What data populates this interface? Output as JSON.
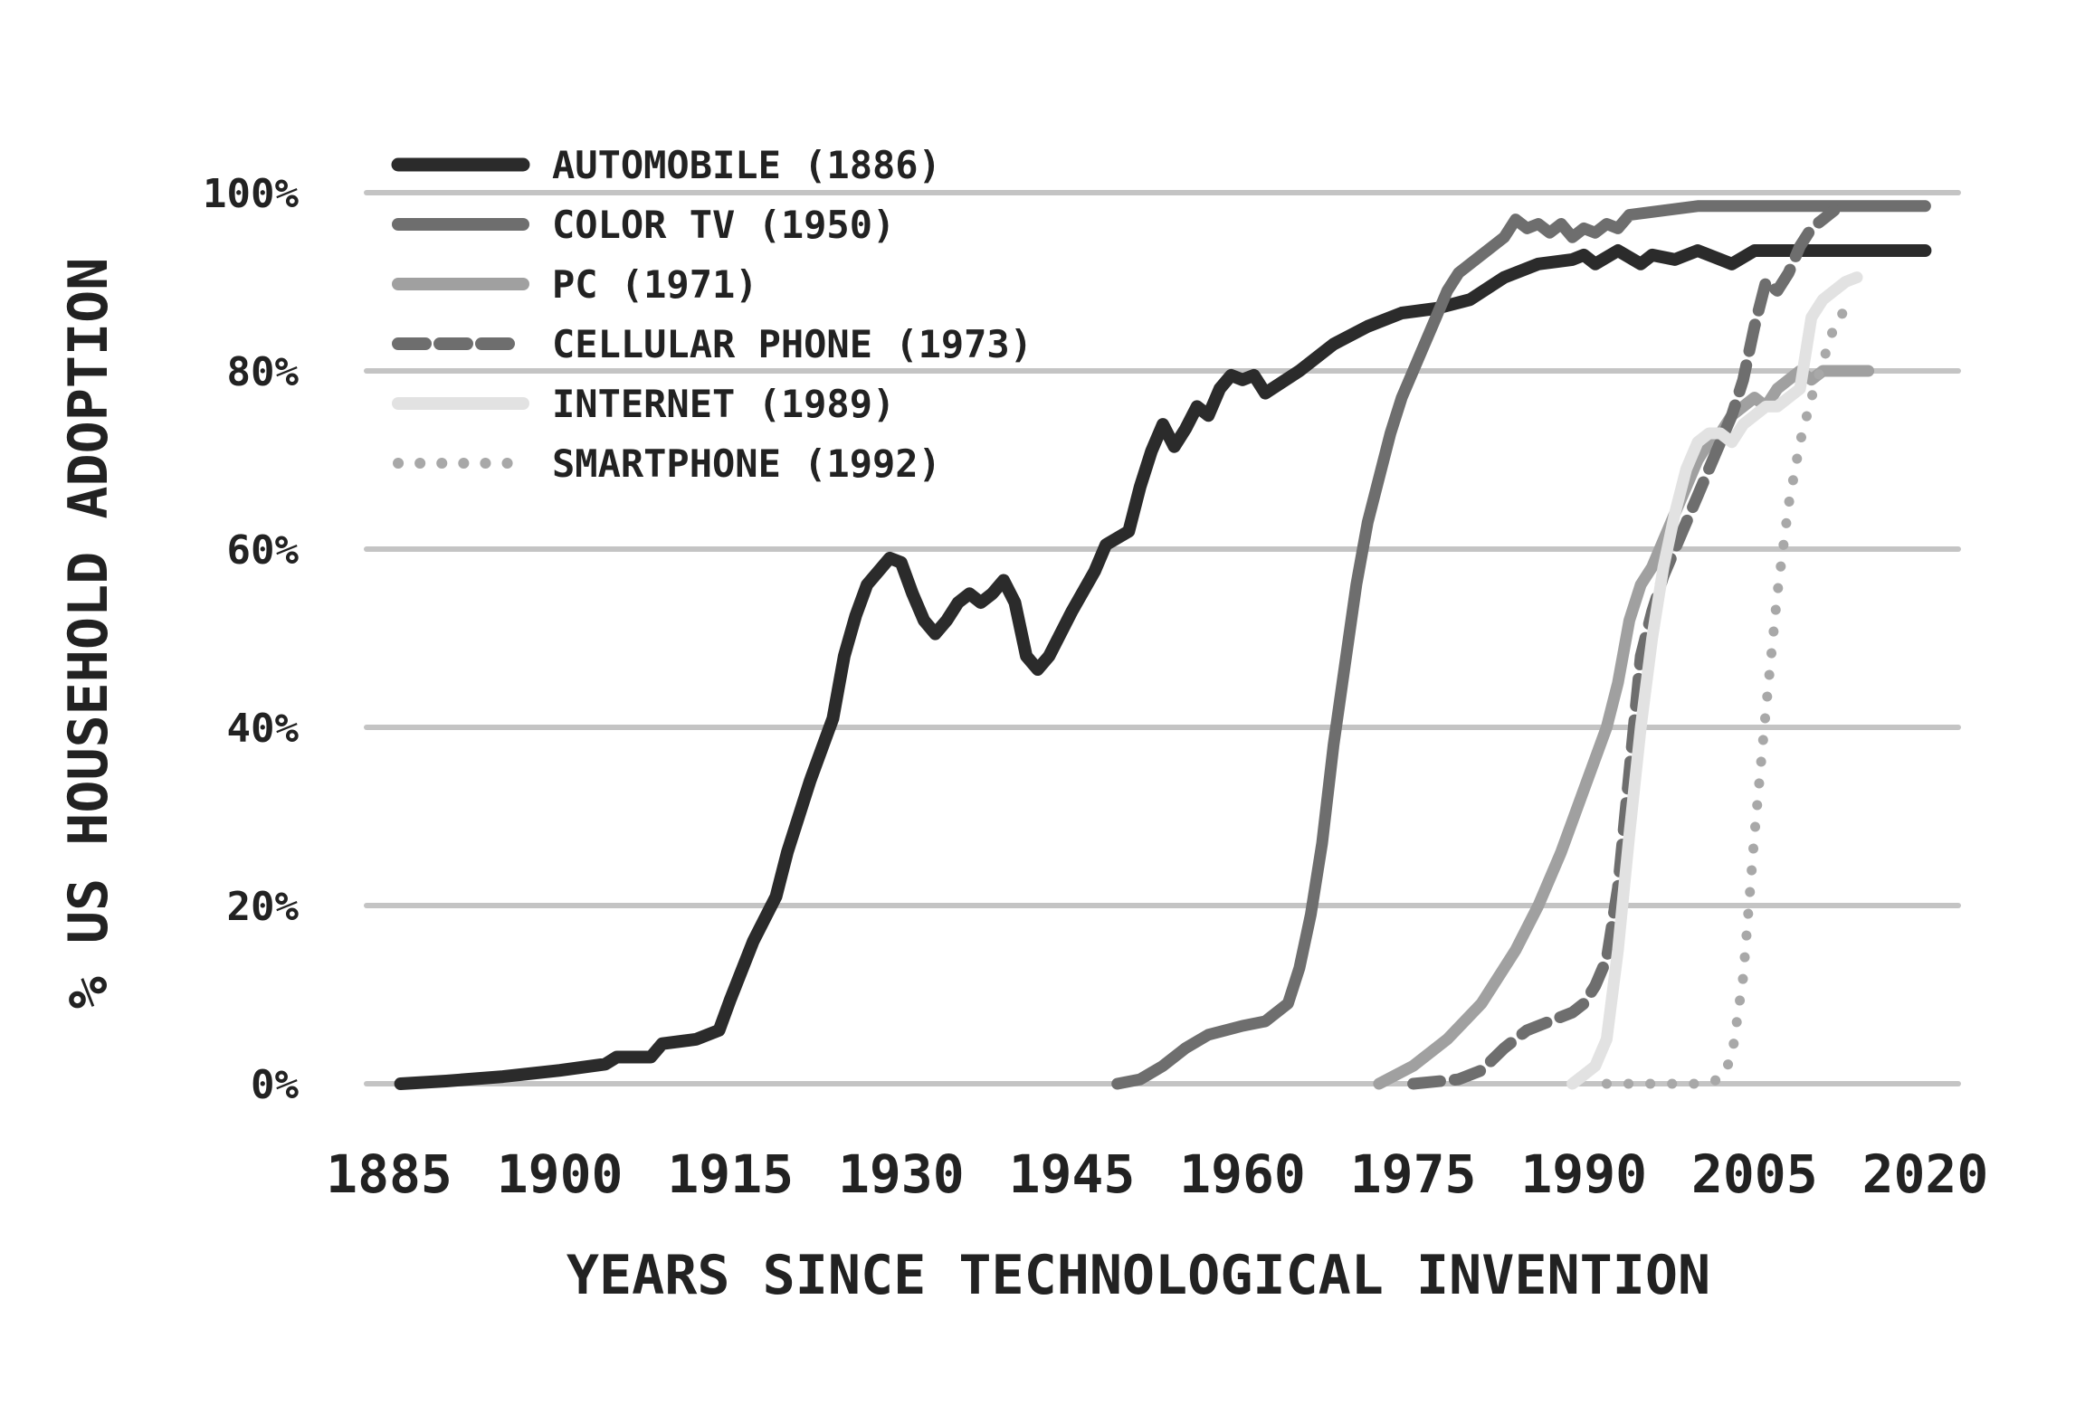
{
  "chart_data": {
    "type": "line",
    "title": "",
    "xlabel": "YEARS SINCE TECHNOLOGICAL INVENTION",
    "ylabel": "% US HOUSEHOLD ADOPTION",
    "xlim": [
      1885,
      2021
    ],
    "ylim": [
      0,
      100
    ],
    "x_ticks": [
      1885,
      1900,
      1915,
      1930,
      1945,
      1960,
      1975,
      1990,
      2005,
      2020
    ],
    "x_tick_labels": [
      "1885",
      "1900",
      "1915",
      "1930",
      "1945",
      "1960",
      "1975",
      "1990",
      "2005",
      "2020"
    ],
    "y_ticks": [
      0,
      20,
      40,
      60,
      80,
      100
    ],
    "y_tick_labels": [
      "0%",
      "20%",
      "40%",
      "60%",
      "80%",
      "100%"
    ],
    "grid": "horizontal",
    "legend_position": "top-left",
    "series": [
      {
        "name": "AUTOMOBILE (1886)",
        "color": "#2b2b2b",
        "dash": "solid",
        "width": 14,
        "points": [
          [
            1886,
            0
          ],
          [
            1890,
            0.3
          ],
          [
            1895,
            0.8
          ],
          [
            1900,
            1.5
          ],
          [
            1904,
            2.2
          ],
          [
            1905,
            3
          ],
          [
            1908,
            3
          ],
          [
            1909,
            4.5
          ],
          [
            1912,
            5
          ],
          [
            1914,
            6
          ],
          [
            1915,
            9.5
          ],
          [
            1917,
            16
          ],
          [
            1919,
            21
          ],
          [
            1920,
            26
          ],
          [
            1922,
            34
          ],
          [
            1924,
            41
          ],
          [
            1925,
            48
          ],
          [
            1926,
            52.5
          ],
          [
            1927,
            56
          ],
          [
            1929,
            59
          ],
          [
            1930,
            58.5
          ],
          [
            1931,
            55
          ],
          [
            1932,
            52
          ],
          [
            1933,
            50.5
          ],
          [
            1934,
            52
          ],
          [
            1935,
            54
          ],
          [
            1936,
            55
          ],
          [
            1937,
            54
          ],
          [
            1938,
            55
          ],
          [
            1939,
            56.5
          ],
          [
            1940,
            54
          ],
          [
            1941,
            48
          ],
          [
            1942,
            46.5
          ],
          [
            1943,
            48
          ],
          [
            1945,
            53
          ],
          [
            1947,
            57.5
          ],
          [
            1948,
            60.5
          ],
          [
            1950,
            62
          ],
          [
            1951,
            67
          ],
          [
            1952,
            71
          ],
          [
            1953,
            74
          ],
          [
            1954,
            71.5
          ],
          [
            1955,
            73.5
          ],
          [
            1956,
            76
          ],
          [
            1957,
            75
          ],
          [
            1958,
            78
          ],
          [
            1959,
            79.5
          ],
          [
            1960,
            79
          ],
          [
            1961,
            79.5
          ],
          [
            1962,
            77.5
          ],
          [
            1965,
            80
          ],
          [
            1968,
            83
          ],
          [
            1971,
            85
          ],
          [
            1974,
            86.5
          ],
          [
            1977,
            87
          ],
          [
            1980,
            88
          ],
          [
            1983,
            90.5
          ],
          [
            1986,
            92
          ],
          [
            1989,
            92.5
          ],
          [
            1990,
            93
          ],
          [
            1991,
            92
          ],
          [
            1993,
            93.5
          ],
          [
            1995,
            92
          ],
          [
            1996,
            93
          ],
          [
            1998,
            92.5
          ],
          [
            2000,
            93.5
          ],
          [
            2003,
            92
          ],
          [
            2005,
            93.5
          ],
          [
            2008,
            93.5
          ],
          [
            2015,
            93.5
          ],
          [
            2020,
            93.5
          ]
        ]
      },
      {
        "name": "COLOR TV (1950)",
        "color": "#6e6e6e",
        "dash": "solid",
        "width": 13,
        "points": [
          [
            1949,
            0
          ],
          [
            1951,
            0.5
          ],
          [
            1953,
            2
          ],
          [
            1955,
            4
          ],
          [
            1957,
            5.5
          ],
          [
            1960,
            6.5
          ],
          [
            1962,
            7
          ],
          [
            1964,
            9
          ],
          [
            1965,
            13
          ],
          [
            1966,
            19
          ],
          [
            1967,
            27
          ],
          [
            1968,
            38
          ],
          [
            1969,
            47
          ],
          [
            1970,
            56
          ],
          [
            1971,
            63
          ],
          [
            1972,
            68
          ],
          [
            1973,
            73
          ],
          [
            1974,
            77
          ],
          [
            1975,
            80
          ],
          [
            1976,
            83
          ],
          [
            1977,
            86
          ],
          [
            1978,
            89
          ],
          [
            1979,
            91
          ],
          [
            1981,
            93
          ],
          [
            1983,
            95
          ],
          [
            1984,
            97
          ],
          [
            1985,
            96
          ],
          [
            1986,
            96.5
          ],
          [
            1987,
            95.5
          ],
          [
            1988,
            96.5
          ],
          [
            1989,
            95
          ],
          [
            1990,
            96
          ],
          [
            1991,
            95.5
          ],
          [
            1992,
            96.5
          ],
          [
            1993,
            96
          ],
          [
            1994,
            97.5
          ],
          [
            1997,
            98
          ],
          [
            2000,
            98.5
          ],
          [
            2005,
            98.5
          ],
          [
            2010,
            98.5
          ],
          [
            2015,
            98.5
          ],
          [
            2020,
            98.5
          ]
        ]
      },
      {
        "name": "PC (1971)",
        "color": "#a0a0a0",
        "dash": "solid",
        "width": 13,
        "points": [
          [
            1972,
            0
          ],
          [
            1975,
            2
          ],
          [
            1978,
            5
          ],
          [
            1981,
            9
          ],
          [
            1984,
            15
          ],
          [
            1986,
            20
          ],
          [
            1988,
            26
          ],
          [
            1990,
            33
          ],
          [
            1992,
            40
          ],
          [
            1993,
            45
          ],
          [
            1994,
            52
          ],
          [
            1995,
            56
          ],
          [
            1996,
            58
          ],
          [
            1997,
            61
          ],
          [
            1998,
            64
          ],
          [
            1999,
            67
          ],
          [
            2000,
            70
          ],
          [
            2001,
            72
          ],
          [
            2002,
            73
          ],
          [
            2003,
            75
          ],
          [
            2004,
            76
          ],
          [
            2005,
            77
          ],
          [
            2006,
            76
          ],
          [
            2007,
            78
          ],
          [
            2008,
            79
          ],
          [
            2009,
            80
          ],
          [
            2010,
            79
          ],
          [
            2011,
            80
          ],
          [
            2012,
            80
          ],
          [
            2015,
            80
          ]
        ]
      },
      {
        "name": "CELLULAR PHONE (1973)",
        "color": "#6e6e6e",
        "dash": "dashed",
        "width": 13,
        "points": [
          [
            1975,
            0
          ],
          [
            1979,
            0.5
          ],
          [
            1981,
            1.5
          ],
          [
            1983,
            4
          ],
          [
            1985,
            6
          ],
          [
            1987,
            7
          ],
          [
            1989,
            8
          ],
          [
            1990,
            9
          ],
          [
            1991,
            11
          ],
          [
            1992,
            14
          ],
          [
            1993,
            22
          ],
          [
            1994,
            35
          ],
          [
            1995,
            48
          ],
          [
            1996,
            53
          ],
          [
            1997,
            57
          ],
          [
            1998,
            60
          ],
          [
            1999,
            63
          ],
          [
            2000,
            66
          ],
          [
            2001,
            69
          ],
          [
            2002,
            72
          ],
          [
            2003,
            75
          ],
          [
            2004,
            79
          ],
          [
            2005,
            85
          ],
          [
            2006,
            90
          ],
          [
            2007,
            89
          ],
          [
            2008,
            91
          ],
          [
            2009,
            94
          ],
          [
            2010,
            96
          ],
          [
            2011,
            97
          ],
          [
            2012,
            98
          ]
        ]
      },
      {
        "name": "INTERNET (1989)",
        "color": "#e2e2e2",
        "dash": "solid",
        "width": 13,
        "points": [
          [
            1989,
            0
          ],
          [
            1990,
            1
          ],
          [
            1991,
            2
          ],
          [
            1992,
            5
          ],
          [
            1993,
            15
          ],
          [
            1994,
            28
          ],
          [
            1995,
            40
          ],
          [
            1996,
            50
          ],
          [
            1997,
            58
          ],
          [
            1998,
            64
          ],
          [
            1999,
            69
          ],
          [
            2000,
            72
          ],
          [
            2001,
            73
          ],
          [
            2002,
            73
          ],
          [
            2003,
            72
          ],
          [
            2004,
            74
          ],
          [
            2005,
            75
          ],
          [
            2006,
            76
          ],
          [
            2007,
            76
          ],
          [
            2008,
            77
          ],
          [
            2009,
            78
          ],
          [
            2010,
            86
          ],
          [
            2011,
            88
          ],
          [
            2012,
            89
          ],
          [
            2013,
            90
          ],
          [
            2014,
            90.5
          ]
        ]
      },
      {
        "name": "SMARTPHONE (1992)",
        "color": "#a8a8a8",
        "dash": "dotted",
        "width": 11,
        "points": [
          [
            1992,
            0
          ],
          [
            1995,
            0
          ],
          [
            1998,
            0
          ],
          [
            2000,
            0
          ],
          [
            2002,
            0.5
          ],
          [
            2003,
            3
          ],
          [
            2004,
            12
          ],
          [
            2005,
            28
          ],
          [
            2006,
            42
          ],
          [
            2007,
            55
          ],
          [
            2008,
            65
          ],
          [
            2009,
            72
          ],
          [
            2010,
            77
          ],
          [
            2011,
            81
          ],
          [
            2012,
            85
          ],
          [
            2013,
            87
          ]
        ]
      }
    ]
  }
}
